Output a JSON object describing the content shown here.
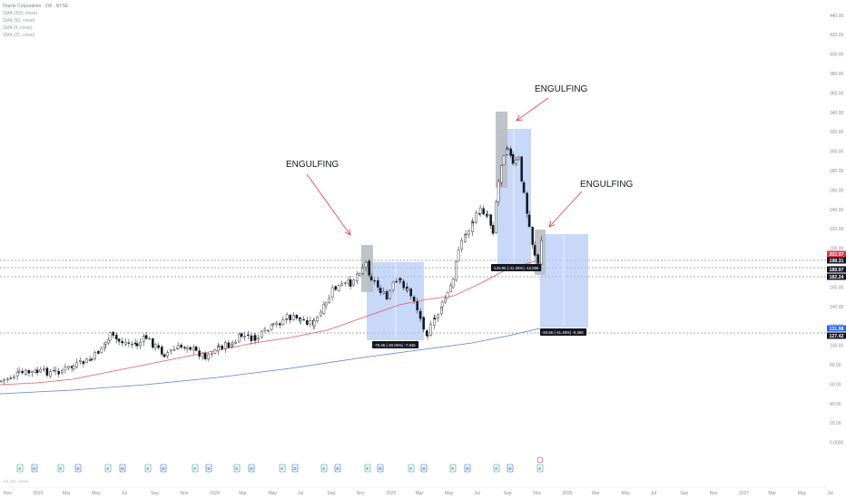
{
  "legend": {
    "title": "Oracle Corporation · 1W · NYSE",
    "lines": [
      "SMA (200, close)",
      "SMA (50, close)",
      "SMA (9, close)",
      "SMA (21, close)"
    ]
  },
  "price_axis": [
    "440.00",
    "420.00",
    "400.00",
    "380.00",
    "360.00",
    "340.00",
    "320.00",
    "300.00",
    "280.00",
    "260.00",
    "240.00",
    "220.00",
    "200.00",
    "180.00",
    "160.00",
    "140.00",
    "120.00",
    "100.00",
    "80.00",
    "60.00",
    "40.00",
    "20.00",
    "0.0000"
  ],
  "price_tags": [
    {
      "label": "202.97",
      "color": "#e53945"
    },
    {
      "label": "198.31",
      "color": "#131722"
    },
    {
      "label": "189.97",
      "color": "#131722"
    },
    {
      "label": "182.24",
      "color": "#131722"
    },
    {
      "label": "131.98",
      "color": "#2962ff"
    },
    {
      "label": "127.42",
      "color": "#131722"
    }
  ],
  "time_axis": [
    "Nov",
    "2023",
    "Mar",
    "May",
    "Jul",
    "Sep",
    "Nov",
    "2024",
    "Mar",
    "May",
    "Jul",
    "Sep",
    "Nov",
    "2025",
    "Mar",
    "May",
    "Jul",
    "Sep",
    "Nov",
    "2026",
    "Mar",
    "May",
    "Jul",
    "Sep",
    "Nov",
    "2027",
    "Mar",
    "May",
    "Jul"
  ],
  "annotations": [
    "ENGULFING",
    "ENGULFING",
    "ENGULFING"
  ],
  "measures": [
    "-79.45 (-40.06%) -7,945",
    "-125.95 (-41.26%) -12,595",
    "-93.56 (-41.49%) -9,356"
  ],
  "events": [
    "E",
    "D",
    "E",
    "D",
    "E",
    "D",
    "E",
    "D",
    "E",
    "D",
    "E",
    "D",
    "E",
    "D",
    "E",
    "D",
    "E",
    "D",
    "E",
    "D",
    "E",
    "D",
    "E",
    "D",
    "E"
  ],
  "footer": "Vol (20, close)",
  "colors": {
    "up": "#ffffff",
    "down": "#131722",
    "sma_red": "#e55a63",
    "sma_blue": "#5b7fd9",
    "box": "#a9c3f5",
    "gray": "#b9bcc2"
  }
}
